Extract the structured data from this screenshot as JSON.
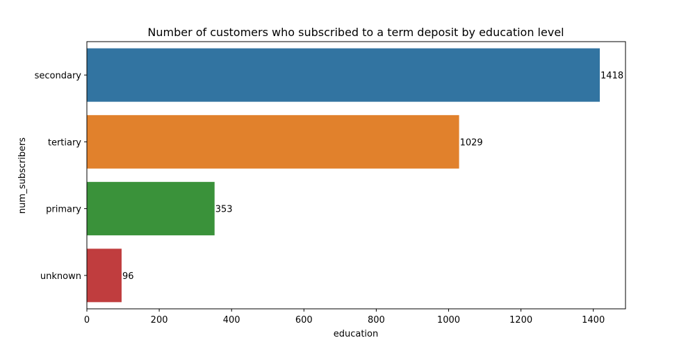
{
  "chart_data": {
    "type": "bar",
    "orientation": "horizontal",
    "title": "Number of customers who subscribed to a term deposit by education level",
    "xlabel": "education",
    "ylabel": "num_subscribers",
    "categories": [
      "secondary",
      "tertiary",
      "primary",
      "unknown"
    ],
    "values": [
      1418,
      1029,
      353,
      96
    ],
    "data_labels": [
      "1418",
      "1029",
      "353",
      "96"
    ],
    "colors": [
      "#3274a1",
      "#e1812c",
      "#3a923a",
      "#c03d3e"
    ],
    "xlim": [
      0,
      1489
    ],
    "xticks": [
      0,
      200,
      400,
      600,
      800,
      1000,
      1200,
      1400
    ],
    "grid": false,
    "legend": "none"
  }
}
